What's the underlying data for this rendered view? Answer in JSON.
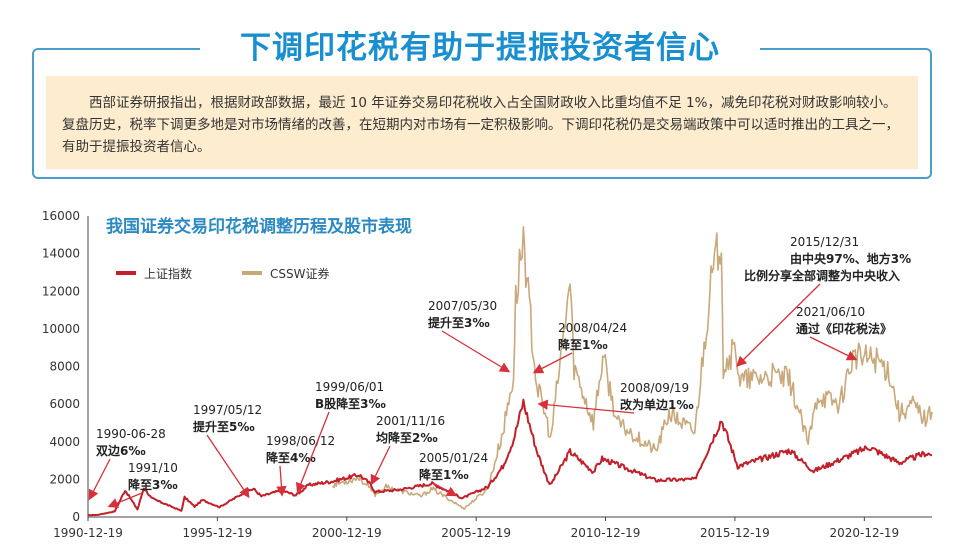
{
  "banner": {
    "headline": "下调印花税有助于提振投资者信心",
    "summary": "西部证券研报指出，根据财政部数据，最近 10 年证券交易印花税收入占全国财政收入比重均值不足 1%，减免印花税对财政影响较小。复盘历史，税率下调更多地是对市场情绪的改善，在短期内对市场有一定积极影响。下调印花税仍是交易端政策中可以适时推出的工具之一，有助于提振投资者信心。"
  },
  "colors": {
    "accent": "#1a8fd0",
    "border": "#4a9fc8",
    "panel": "#fdeccd",
    "sse": "#c0202a",
    "cssw": "#c9a97c",
    "arrow": "#d6303a",
    "title": "#2b8ac2"
  },
  "chart_data": {
    "type": "line",
    "title": "我国证券交易印花税调整历程及股市表现",
    "xlabel": "",
    "ylabel": "",
    "ylim": [
      0,
      16000
    ],
    "yticks": [
      0,
      2000,
      4000,
      6000,
      8000,
      10000,
      12000,
      14000,
      16000
    ],
    "xrange": [
      "1990-12-19",
      "2023-08-01"
    ],
    "xticks": [
      "1990-12-19",
      "1995-12-19",
      "2000-12-19",
      "2005-12-19",
      "2010-12-19",
      "2015-12-19",
      "2020-12-19"
    ],
    "grid": false,
    "legend_position": "top-left",
    "series": [
      {
        "name": "上证指数",
        "color": "#c0202a",
        "points": [
          [
            "1990-12-19",
            100
          ],
          [
            "1991-05-01",
            110
          ],
          [
            "1992-01-01",
            300
          ],
          [
            "1992-05-26",
            1429
          ],
          [
            "1992-11-17",
            400
          ],
          [
            "1993-02-15",
            1558
          ],
          [
            "1993-06-01",
            1000
          ],
          [
            "1994-07-29",
            330
          ],
          [
            "1994-09-13",
            1050
          ],
          [
            "1995-02-01",
            550
          ],
          [
            "1995-05-22",
            900
          ],
          [
            "1996-01-19",
            530
          ],
          [
            "1996-12-10",
            1250
          ],
          [
            "1997-05-12",
            1500
          ],
          [
            "1997-09-01",
            1100
          ],
          [
            "1998-06-12",
            1420
          ],
          [
            "1999-01-01",
            1150
          ],
          [
            "1999-06-30",
            1700
          ],
          [
            "2000-06-01",
            1900
          ],
          [
            "2001-06-14",
            2245
          ],
          [
            "2001-11-16",
            1750
          ],
          [
            "2002-01-23",
            1340
          ],
          [
            "2003-01-01",
            1450
          ],
          [
            "2004-04-07",
            1780
          ],
          [
            "2005-01-24",
            1250
          ],
          [
            "2005-06-06",
            1000
          ],
          [
            "2006-06-01",
            1600
          ],
          [
            "2006-12-31",
            2700
          ],
          [
            "2007-05-30",
            4100
          ],
          [
            "2007-10-16",
            6124
          ],
          [
            "2008-04-24",
            3500
          ],
          [
            "2008-09-19",
            2000
          ],
          [
            "2008-11-01",
            1700
          ],
          [
            "2009-08-04",
            3478
          ],
          [
            "2010-07-01",
            2400
          ],
          [
            "2010-11-01",
            3100
          ],
          [
            "2012-12-01",
            1950
          ],
          [
            "2014-06-01",
            2000
          ],
          [
            "2015-06-12",
            5178
          ],
          [
            "2016-01-28",
            2700
          ],
          [
            "2018-01-29",
            3550
          ],
          [
            "2019-01-04",
            2440
          ],
          [
            "2021-02-18",
            3730
          ],
          [
            "2022-04-27",
            2880
          ],
          [
            "2023-05-09",
            3400
          ],
          [
            "2023-08-01",
            3290
          ]
        ]
      },
      {
        "name": "CSSW证券",
        "color": "#c9a97c",
        "points": [
          [
            "2000-06-01",
            1700
          ],
          [
            "2001-06-14",
            2100
          ],
          [
            "2002-01-23",
            1200
          ],
          [
            "2002-06-24",
            1600
          ],
          [
            "2003-11-01",
            1100
          ],
          [
            "2004-04-07",
            1500
          ],
          [
            "2005-07-01",
            450
          ],
          [
            "2006-06-01",
            1500
          ],
          [
            "2006-12-31",
            4500
          ],
          [
            "2007-05-30",
            7500
          ],
          [
            "2007-06-30",
            11500
          ],
          [
            "2007-10-16",
            15000
          ],
          [
            "2008-01-10",
            11000
          ],
          [
            "2008-04-24",
            7000
          ],
          [
            "2008-09-19",
            5000
          ],
          [
            "2008-11-01",
            4000
          ],
          [
            "2009-08-04",
            12500
          ],
          [
            "2009-09-30",
            8000
          ],
          [
            "2010-06-30",
            5000
          ],
          [
            "2010-11-11",
            8500
          ],
          [
            "2011-06-01",
            5000
          ],
          [
            "2012-12-01",
            3500
          ],
          [
            "2013-06-01",
            5500
          ],
          [
            "2014-06-01",
            4500
          ],
          [
            "2014-12-31",
            12000
          ],
          [
            "2015-06-12",
            15100
          ],
          [
            "2015-07-08",
            8000
          ],
          [
            "2015-12-31",
            9000
          ],
          [
            "2016-03-01",
            7200
          ],
          [
            "2017-06-01",
            7500
          ],
          [
            "2018-01-29",
            7300
          ],
          [
            "2018-10-18",
            3900
          ],
          [
            "2019-03-01",
            6500
          ],
          [
            "2020-01-01",
            6000
          ],
          [
            "2020-07-09",
            8500
          ],
          [
            "2021-06-10",
            8400
          ],
          [
            "2021-12-01",
            7800
          ],
          [
            "2022-04-27",
            5500
          ],
          [
            "2022-11-01",
            6000
          ],
          [
            "2023-05-01",
            5200
          ],
          [
            "2023-08-01",
            5600
          ]
        ]
      }
    ],
    "annotations": [
      {
        "date": "1990-06-28",
        "text": "双边6‰"
      },
      {
        "date": "1991/10",
        "text": "降至3‰"
      },
      {
        "date": "1997/05/12",
        "text": "提升至5‰"
      },
      {
        "date": "1998/06/12",
        "text": "降至4‰"
      },
      {
        "date": "1999/06/01",
        "text": "B股降至3‰"
      },
      {
        "date": "2001/11/16",
        "text": "均降至2‰"
      },
      {
        "date": "2005/01/24",
        "text": "降至1‰"
      },
      {
        "date": "2007/05/30",
        "text": "提升至3‰"
      },
      {
        "date": "2008/04/24",
        "text": "降至1‰"
      },
      {
        "date": "2008/09/19",
        "text": "改为单边1‰"
      },
      {
        "date": "2015/12/31",
        "text": "由中央97%、地方3%",
        "text2": "比例分享全部调整为中央收入"
      },
      {
        "date": "2021/06/10",
        "text": "通过《印花税法》"
      }
    ]
  }
}
